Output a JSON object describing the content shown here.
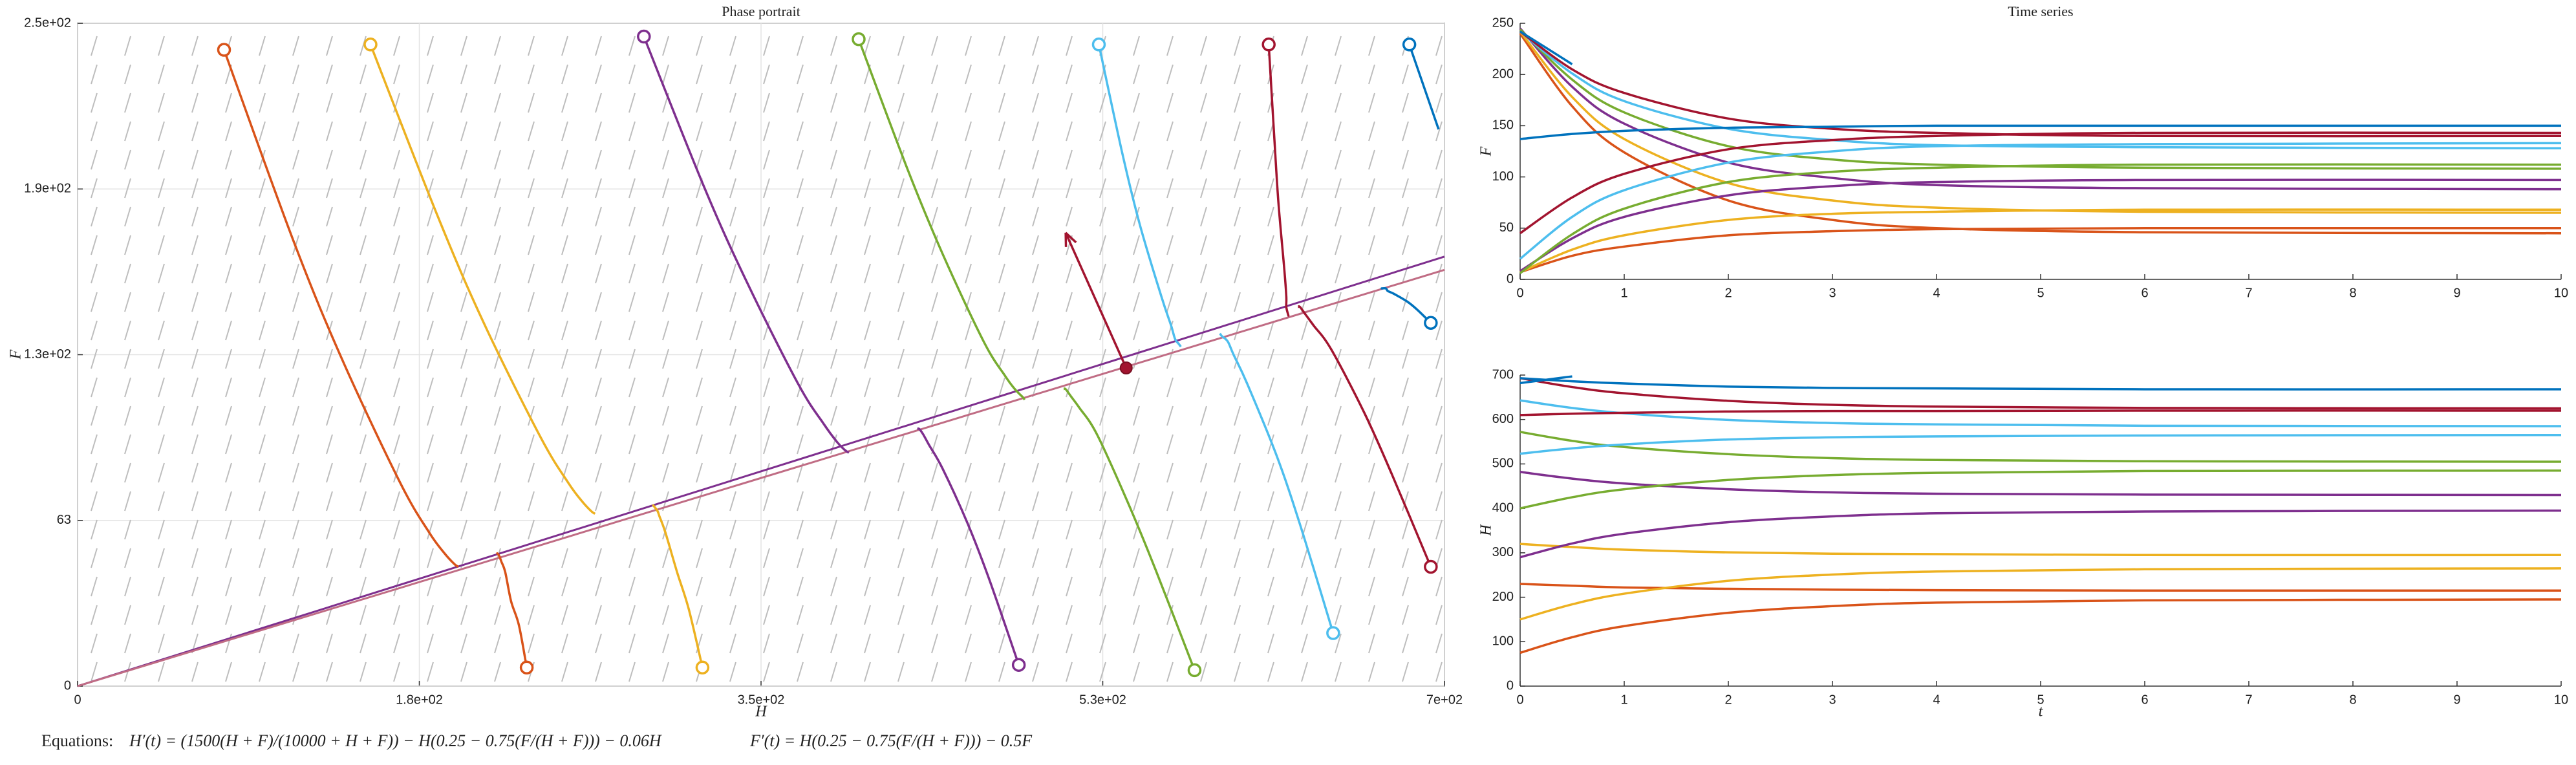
{
  "chart_data": [
    {
      "type": "phase",
      "title": "Phase portrait",
      "xlabel": "H",
      "ylabel": "F",
      "xlim": [
        0,
        700
      ],
      "ylim": [
        0,
        250
      ],
      "xticks": [
        0,
        {
          "value": 175,
          "label": "1.8e+02"
        },
        {
          "value": 350,
          "label": "3.5e+02"
        },
        {
          "value": 525,
          "label": "5.3e+02"
        },
        {
          "value": 700,
          "label": "7e+02"
        }
      ],
      "yticks": [
        0,
        {
          "value": 62.5,
          "label": "63"
        },
        {
          "value": 125,
          "label": "1.3e+02"
        },
        {
          "value": 187.5,
          "label": "1.9e+02"
        },
        {
          "value": 250,
          "label": "2.5e+02"
        }
      ],
      "grid": true,
      "nullclines": [
        {
          "color": "#7e2f8e",
          "x": [
            0,
            700
          ],
          "y": [
            0,
            162
          ]
        },
        {
          "color": "#c06c84",
          "x": [
            0,
            700
          ],
          "y": [
            0,
            157
          ]
        }
      ],
      "equilibrium": {
        "x": 537,
        "y": 120,
        "color": "#a2142f"
      },
      "arrow": {
        "x": [
          537,
          506
        ],
        "y": [
          120,
          171
        ],
        "color": "#a2142f"
      }
    },
    {
      "type": "line",
      "title": "Time series",
      "ylabel": "F",
      "x": [
        0,
        0.5,
        1,
        2,
        3,
        4,
        6,
        10
      ],
      "xlim": [
        0,
        10
      ],
      "xticks": [
        0,
        1,
        2,
        3,
        4,
        5,
        6,
        7,
        8,
        9,
        10
      ],
      "ylim": [
        0,
        250
      ],
      "yticks": [
        0,
        50,
        100,
        150,
        200,
        250
      ],
      "series": [
        {
          "color": "#d95319",
          "values": [
            240,
            169,
            124,
            77,
            58,
            50,
            46,
            45
          ]
        },
        {
          "color": "#d95319",
          "values": [
            7,
            23,
            32,
            43,
            47,
            49,
            50,
            50
          ]
        },
        {
          "color": "#edb120",
          "values": [
            242,
            178,
            137,
            94,
            77,
            70,
            66,
            65
          ]
        },
        {
          "color": "#edb120",
          "values": [
            7,
            29,
            43,
            58,
            64,
            66,
            68,
            68
          ]
        },
        {
          "color": "#7e2f8e",
          "values": [
            245,
            188,
            152,
            114,
            99,
            92,
            89,
            88
          ]
        },
        {
          "color": "#7e2f8e",
          "values": [
            8,
            40,
            61,
            82,
            91,
            95,
            97,
            97
          ]
        },
        {
          "color": "#77ac30",
          "values": [
            244,
            195,
            163,
            130,
            117,
            112,
            109,
            108
          ]
        },
        {
          "color": "#77ac30",
          "values": [
            6,
            44,
            69,
            95,
            105,
            109,
            112,
            112
          ]
        },
        {
          "color": "#4dbeee",
          "values": [
            242,
            201,
            174,
            147,
            136,
            131,
            129,
            128
          ]
        },
        {
          "color": "#4dbeee",
          "values": [
            20,
            61,
            87,
            114,
            125,
            130,
            132,
            133
          ]
        },
        {
          "color": "#a2142f",
          "values": [
            242,
            205,
            182,
            157,
            147,
            143,
            140,
            140
          ]
        },
        {
          "color": "#a2142f",
          "values": [
            45,
            80,
            103,
            127,
            136,
            140,
            143,
            143
          ]
        },
        {
          "color": "#0072bd",
          "values": [
            242,
            210,
            null,
            null,
            null,
            null,
            null,
            null
          ]
        },
        {
          "color": "#0072bd",
          "values": [
            137,
            142,
            145,
            148,
            149,
            150,
            150,
            150
          ]
        }
      ]
    },
    {
      "type": "line",
      "xlabel": "t",
      "ylabel": "H",
      "x": [
        0,
        0.5,
        1,
        2,
        3,
        4,
        6,
        10
      ],
      "xlim": [
        0,
        10
      ],
      "xticks": [
        0,
        1,
        2,
        3,
        4,
        5,
        6,
        7,
        8,
        9,
        10
      ],
      "ylim": [
        0,
        700
      ],
      "yticks": [
        0,
        100,
        200,
        300,
        400,
        500,
        600,
        700
      ],
      "series": [
        {
          "color": "#d95319",
          "values": [
            75,
            110,
            135,
            165,
            180,
            188,
            193,
            195
          ]
        },
        {
          "color": "#d95319",
          "values": [
            230,
            226,
            222,
            219,
            217,
            216,
            215,
            215
          ]
        },
        {
          "color": "#edb120",
          "values": [
            150,
            184,
            208,
            237,
            251,
            258,
            263,
            265
          ]
        },
        {
          "color": "#edb120",
          "values": [
            320,
            313,
            307,
            301,
            298,
            297,
            295,
            295
          ]
        },
        {
          "color": "#7e2f8e",
          "values": [
            290,
            321,
            343,
            369,
            382,
            389,
            393,
            395
          ]
        },
        {
          "color": "#7e2f8e",
          "values": [
            482,
            467,
            456,
            443,
            436,
            433,
            431,
            430
          ]
        },
        {
          "color": "#77ac30",
          "values": [
            400,
            425,
            443,
            464,
            475,
            480,
            484,
            485
          ]
        },
        {
          "color": "#77ac30",
          "values": [
            572,
            552,
            538,
            522,
            513,
            509,
            506,
            505
          ]
        },
        {
          "color": "#4dbeee",
          "values": [
            523,
            535,
            544,
            555,
            560,
            562,
            564,
            565
          ]
        },
        {
          "color": "#4dbeee",
          "values": [
            643,
            626,
            614,
            599,
            592,
            589,
            586,
            585
          ]
        },
        {
          "color": "#a2142f",
          "values": [
            610,
            613,
            615,
            618,
            619,
            619,
            620,
            620
          ]
        },
        {
          "color": "#a2142f",
          "values": [
            693,
            673,
            659,
            642,
            633,
            629,
            626,
            625
          ]
        },
        {
          "color": "#0072bd",
          "values": [
            682,
            697,
            null,
            null,
            null,
            null,
            null,
            null
          ]
        },
        {
          "color": "#0072bd",
          "values": [
            693,
            686,
            681,
            674,
            671,
            670,
            668,
            668
          ]
        }
      ]
    }
  ],
  "footer": {
    "label": "Equations:",
    "equations": [
      "H′(t) = (1500(H + F)/(10000 + H + F)) − H(0.25 − 0.75(F/(H + F))) − 0.06H",
      "F′(t) = H(0.25 − 0.75(F/(H + F))) − 0.5F"
    ]
  }
}
